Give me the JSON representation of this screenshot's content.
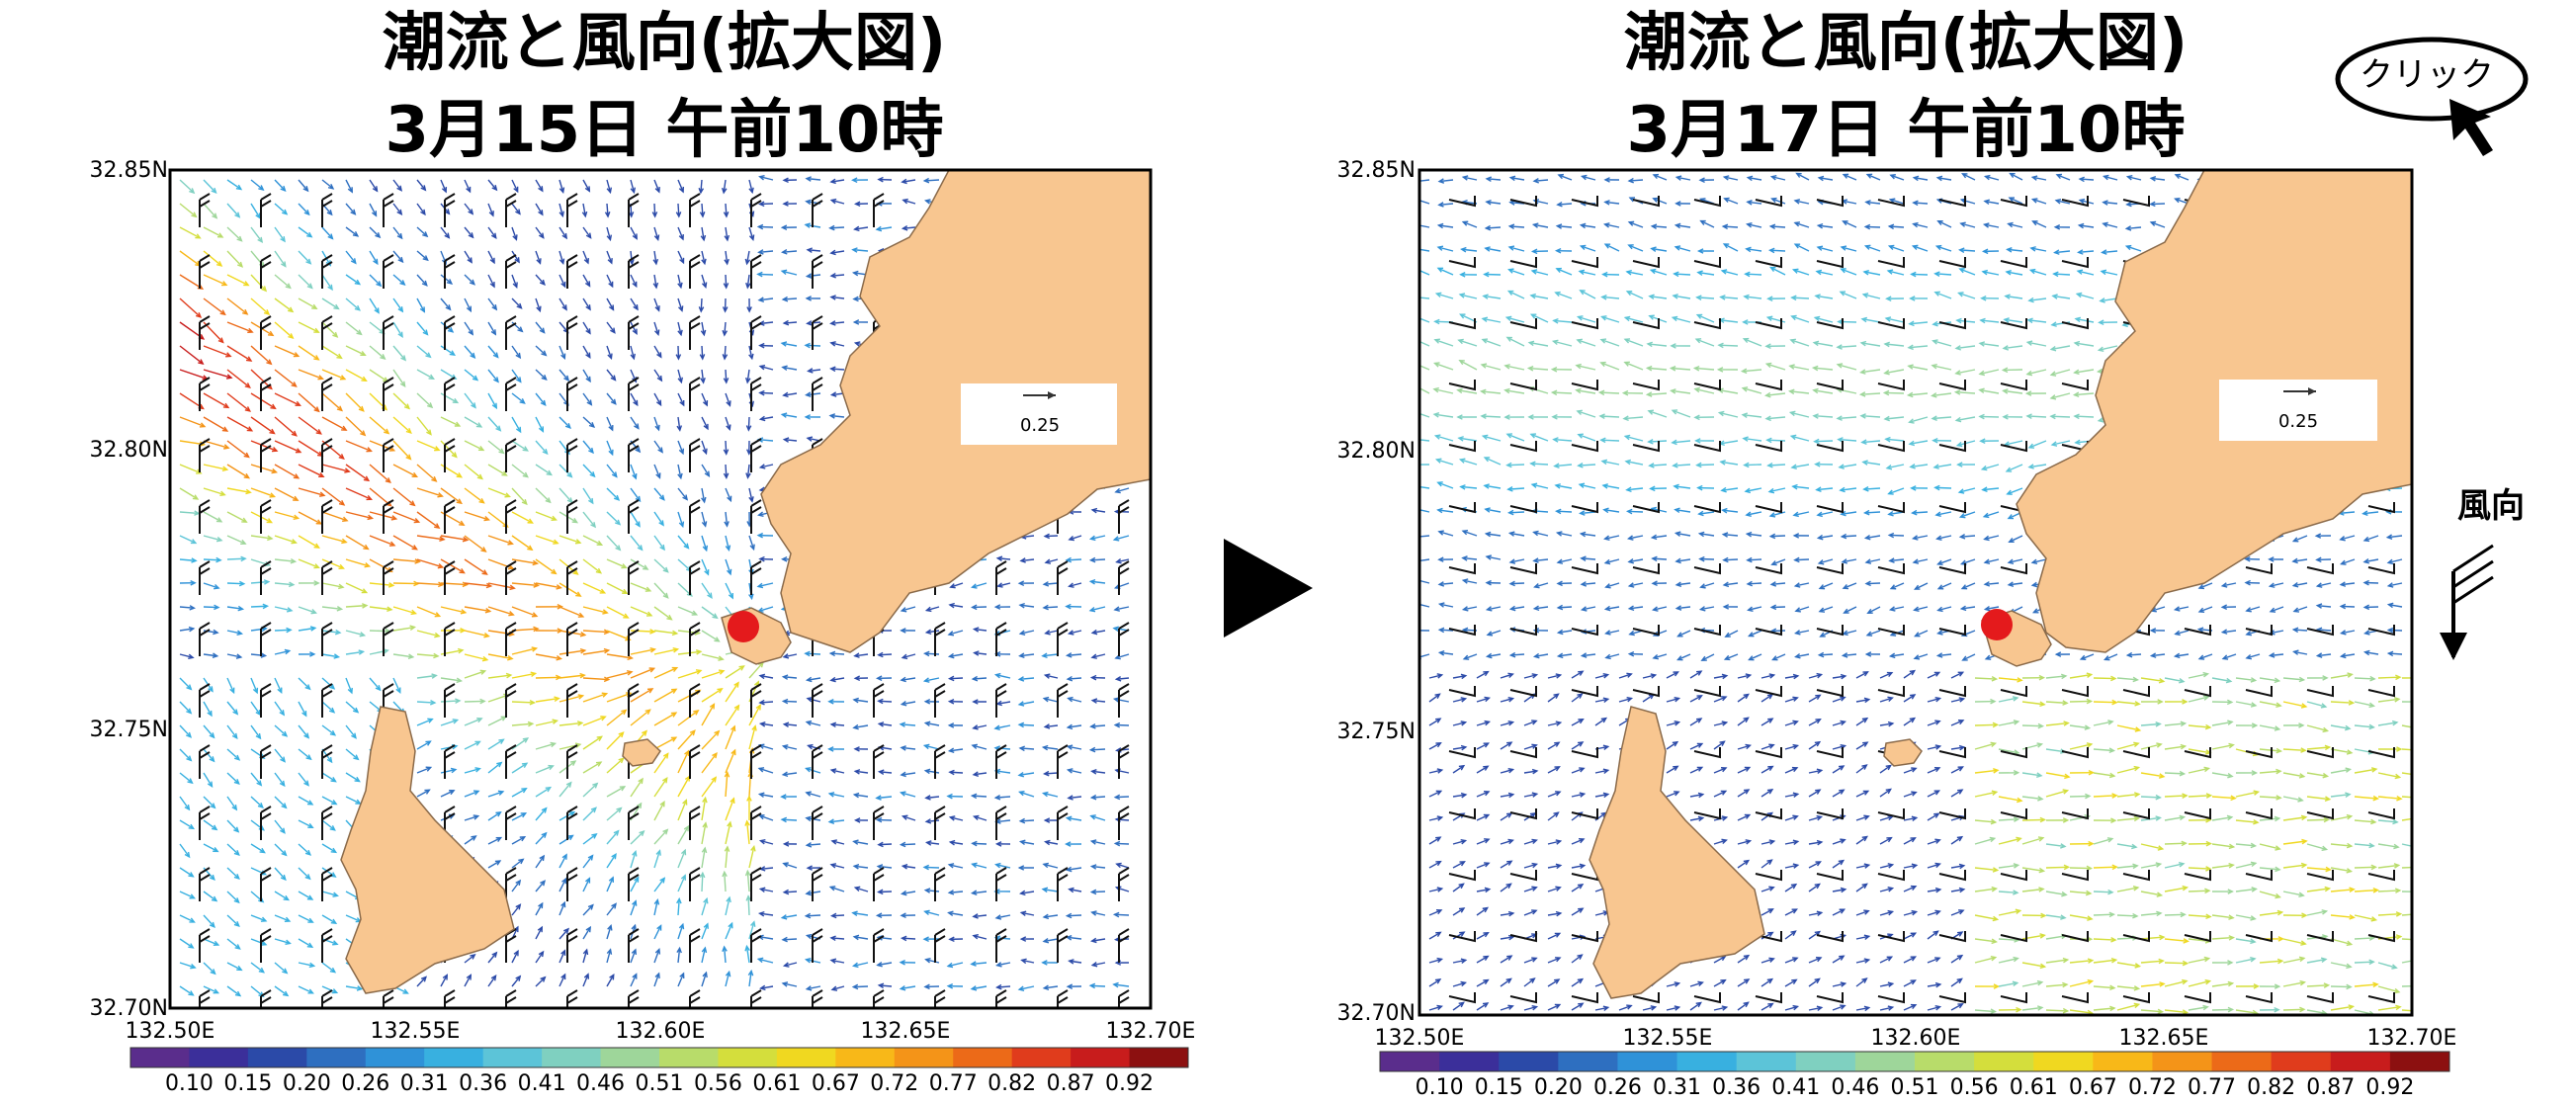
{
  "panels": [
    {
      "title_line1": "潮流と風向(拡大図)",
      "title_line2": "3月15日 午前10時",
      "reference_vector_label": "0.25",
      "current_pattern": "inflow",
      "wind_pattern": "northerly"
    },
    {
      "title_line1": "潮流と風向(拡大図)",
      "title_line2": "3月17日 午前10時",
      "reference_vector_label": "0.25",
      "current_pattern": "outflow",
      "wind_pattern": "westerly"
    }
  ],
  "axes": {
    "lat_labels": [
      "32.85N",
      "32.80N",
      "32.75N",
      "32.70N"
    ],
    "lat_values": [
      32.85,
      32.8,
      32.75,
      32.7
    ],
    "lon_labels": [
      "132.50E",
      "132.55E",
      "132.60E",
      "132.65E",
      "132.70E"
    ],
    "lon_values": [
      132.5,
      132.55,
      132.6,
      132.65,
      132.7
    ]
  },
  "colorbar": {
    "labels": [
      "0.10",
      "0.15",
      "0.20",
      "0.26",
      "0.31",
      "0.36",
      "0.41",
      "0.46",
      "0.51",
      "0.56",
      "0.61",
      "0.67",
      "0.72",
      "0.77",
      "0.82",
      "0.87",
      "0.92"
    ],
    "colors": [
      "#5a2d8c",
      "#3b2f9a",
      "#2b4aa8",
      "#2e6fc0",
      "#2f92d8",
      "#38b0e0",
      "#5cc4d8",
      "#7fd0c0",
      "#9ed69a",
      "#b8dc6a",
      "#d4de3c",
      "#f0d820",
      "#f8b818",
      "#f49418",
      "#ec6a18",
      "#e03c1c",
      "#c81c1c",
      "#8c1010"
    ]
  },
  "markers": {
    "location_color": "#e41a1c"
  },
  "land_color": "#f8c690",
  "buttons": {
    "click_label": "クリック"
  },
  "legend": {
    "wind_direction_label": "風向"
  }
}
